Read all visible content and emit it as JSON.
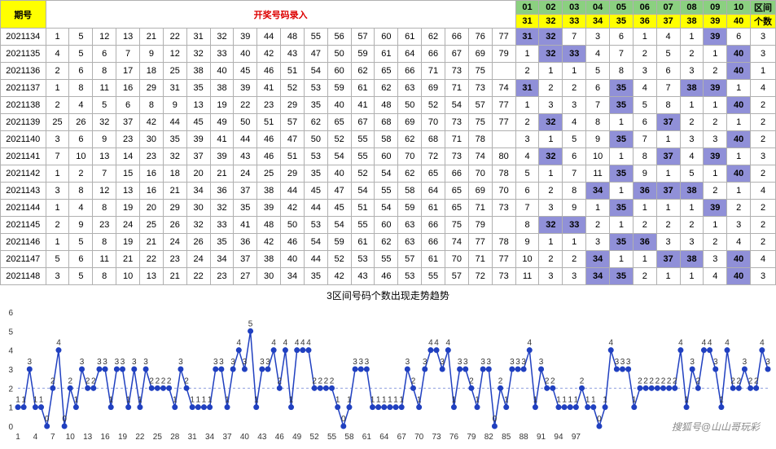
{
  "header": {
    "period_label": "期号",
    "entry_label": "开奖号码录入",
    "segments_top": [
      "01",
      "02",
      "03",
      "04",
      "05",
      "06",
      "07",
      "08",
      "09",
      "10"
    ],
    "segments_bottom": [
      "31",
      "32",
      "33",
      "34",
      "35",
      "36",
      "37",
      "38",
      "39",
      "40"
    ],
    "range_label": "区间",
    "count_label": "个数"
  },
  "colors": {
    "yellow": "#ffff00",
    "green": "#8bd080",
    "highlight": "#9090d8",
    "red": "#d00",
    "border": "#b0b0b0",
    "chart_line": "#2040c0",
    "chart_dashed": "#5080d0"
  },
  "rows": [
    {
      "period": "2021134",
      "nums": [
        "1",
        "5",
        "12",
        "13",
        "21",
        "22",
        "31",
        "32",
        "39",
        "44",
        "48",
        "55",
        "56",
        "57",
        "60",
        "61",
        "62",
        "66",
        "76",
        "77"
      ],
      "seg": [
        {
          "v": "31",
          "h": 1
        },
        {
          "v": "32",
          "h": 1
        },
        {
          "v": "7",
          "h": 0
        },
        {
          "v": "3",
          "h": 0
        },
        {
          "v": "6",
          "h": 0
        },
        {
          "v": "1",
          "h": 0
        },
        {
          "v": "4",
          "h": 0
        },
        {
          "v": "1",
          "h": 0
        },
        {
          "v": "39",
          "h": 1
        },
        {
          "v": "6",
          "h": 0
        }
      ],
      "cnt": "3"
    },
    {
      "period": "2021135",
      "nums": [
        "4",
        "5",
        "6",
        "7",
        "9",
        "12",
        "32",
        "33",
        "40",
        "42",
        "43",
        "47",
        "50",
        "59",
        "61",
        "64",
        "66",
        "67",
        "69",
        "79"
      ],
      "seg": [
        {
          "v": "1",
          "h": 0
        },
        {
          "v": "32",
          "h": 1
        },
        {
          "v": "33",
          "h": 1
        },
        {
          "v": "4",
          "h": 0
        },
        {
          "v": "7",
          "h": 0
        },
        {
          "v": "2",
          "h": 0
        },
        {
          "v": "5",
          "h": 0
        },
        {
          "v": "2",
          "h": 0
        },
        {
          "v": "1",
          "h": 0
        },
        {
          "v": "40",
          "h": 1
        }
      ],
      "cnt": "3"
    },
    {
      "period": "2021136",
      "nums": [
        "2",
        "6",
        "8",
        "17",
        "18",
        "25",
        "38",
        "40",
        "45",
        "46",
        "51",
        "54",
        "60",
        "62",
        "65",
        "66",
        "71",
        "73",
        "75"
      ],
      "seg": [
        {
          "v": "2",
          "h": 0
        },
        {
          "v": "1",
          "h": 0
        },
        {
          "v": "1",
          "h": 0
        },
        {
          "v": "5",
          "h": 0
        },
        {
          "v": "8",
          "h": 0
        },
        {
          "v": "3",
          "h": 0
        },
        {
          "v": "6",
          "h": 0
        },
        {
          "v": "3",
          "h": 0
        },
        {
          "v": "2",
          "h": 0
        },
        {
          "v": "40",
          "h": 1
        }
      ],
      "cnt": "1"
    },
    {
      "period": "2021137",
      "nums": [
        "1",
        "8",
        "11",
        "16",
        "29",
        "31",
        "35",
        "38",
        "39",
        "41",
        "52",
        "53",
        "59",
        "61",
        "62",
        "63",
        "69",
        "71",
        "73",
        "74"
      ],
      "seg": [
        {
          "v": "31",
          "h": 1
        },
        {
          "v": "2",
          "h": 0
        },
        {
          "v": "2",
          "h": 0
        },
        {
          "v": "6",
          "h": 0
        },
        {
          "v": "35",
          "h": 1
        },
        {
          "v": "4",
          "h": 0
        },
        {
          "v": "7",
          "h": 0
        },
        {
          "v": "38",
          "h": 1
        },
        {
          "v": "39",
          "h": 1
        },
        {
          "v": "1",
          "h": 0
        }
      ],
      "cnt": "4"
    },
    {
      "period": "2021138",
      "nums": [
        "2",
        "4",
        "5",
        "6",
        "8",
        "9",
        "13",
        "19",
        "22",
        "23",
        "29",
        "35",
        "40",
        "41",
        "48",
        "50",
        "52",
        "54",
        "57",
        "77"
      ],
      "seg": [
        {
          "v": "1",
          "h": 0
        },
        {
          "v": "3",
          "h": 0
        },
        {
          "v": "3",
          "h": 0
        },
        {
          "v": "7",
          "h": 0
        },
        {
          "v": "35",
          "h": 1
        },
        {
          "v": "5",
          "h": 0
        },
        {
          "v": "8",
          "h": 0
        },
        {
          "v": "1",
          "h": 0
        },
        {
          "v": "1",
          "h": 0
        },
        {
          "v": "40",
          "h": 1
        }
      ],
      "cnt": "2"
    },
    {
      "period": "2021139",
      "nums": [
        "25",
        "26",
        "32",
        "37",
        "42",
        "44",
        "45",
        "49",
        "50",
        "51",
        "57",
        "62",
        "65",
        "67",
        "68",
        "69",
        "70",
        "73",
        "75",
        "77"
      ],
      "seg": [
        {
          "v": "2",
          "h": 0
        },
        {
          "v": "32",
          "h": 1
        },
        {
          "v": "4",
          "h": 0
        },
        {
          "v": "8",
          "h": 0
        },
        {
          "v": "1",
          "h": 0
        },
        {
          "v": "6",
          "h": 0
        },
        {
          "v": "37",
          "h": 1
        },
        {
          "v": "2",
          "h": 0
        },
        {
          "v": "2",
          "h": 0
        },
        {
          "v": "1",
          "h": 0
        }
      ],
      "cnt": "2"
    },
    {
      "period": "2021140",
      "nums": [
        "3",
        "6",
        "9",
        "23",
        "30",
        "35",
        "39",
        "41",
        "44",
        "46",
        "47",
        "50",
        "52",
        "55",
        "58",
        "62",
        "68",
        "71",
        "78"
      ],
      "seg": [
        {
          "v": "3",
          "h": 0
        },
        {
          "v": "1",
          "h": 0
        },
        {
          "v": "5",
          "h": 0
        },
        {
          "v": "9",
          "h": 0
        },
        {
          "v": "35",
          "h": 1
        },
        {
          "v": "7",
          "h": 0
        },
        {
          "v": "1",
          "h": 0
        },
        {
          "v": "3",
          "h": 0
        },
        {
          "v": "3",
          "h": 0
        },
        {
          "v": "40",
          "h": 1
        }
      ],
      "cnt": "2"
    },
    {
      "period": "2021141",
      "nums": [
        "7",
        "10",
        "13",
        "14",
        "23",
        "32",
        "37",
        "39",
        "43",
        "46",
        "51",
        "53",
        "54",
        "55",
        "60",
        "70",
        "72",
        "73",
        "74",
        "80"
      ],
      "seg": [
        {
          "v": "4",
          "h": 0
        },
        {
          "v": "32",
          "h": 1
        },
        {
          "v": "6",
          "h": 0
        },
        {
          "v": "10",
          "h": 0
        },
        {
          "v": "1",
          "h": 0
        },
        {
          "v": "8",
          "h": 0
        },
        {
          "v": "37",
          "h": 1
        },
        {
          "v": "4",
          "h": 0
        },
        {
          "v": "39",
          "h": 1
        },
        {
          "v": "1",
          "h": 0
        }
      ],
      "cnt": "3"
    },
    {
      "period": "2021142",
      "nums": [
        "1",
        "2",
        "7",
        "15",
        "16",
        "18",
        "20",
        "21",
        "24",
        "25",
        "29",
        "35",
        "40",
        "52",
        "54",
        "62",
        "65",
        "66",
        "70",
        "78"
      ],
      "seg": [
        {
          "v": "5",
          "h": 0
        },
        {
          "v": "1",
          "h": 0
        },
        {
          "v": "7",
          "h": 0
        },
        {
          "v": "11",
          "h": 0
        },
        {
          "v": "35",
          "h": 1
        },
        {
          "v": "9",
          "h": 0
        },
        {
          "v": "1",
          "h": 0
        },
        {
          "v": "5",
          "h": 0
        },
        {
          "v": "1",
          "h": 0
        },
        {
          "v": "40",
          "h": 1
        }
      ],
      "cnt": "2"
    },
    {
      "period": "2021143",
      "nums": [
        "3",
        "8",
        "12",
        "13",
        "16",
        "21",
        "34",
        "36",
        "37",
        "38",
        "44",
        "45",
        "47",
        "54",
        "55",
        "58",
        "64",
        "65",
        "69",
        "70"
      ],
      "seg": [
        {
          "v": "6",
          "h": 0
        },
        {
          "v": "2",
          "h": 0
        },
        {
          "v": "8",
          "h": 0
        },
        {
          "v": "34",
          "h": 1
        },
        {
          "v": "1",
          "h": 0
        },
        {
          "v": "36",
          "h": 1
        },
        {
          "v": "37",
          "h": 1
        },
        {
          "v": "38",
          "h": 1
        },
        {
          "v": "2",
          "h": 0
        },
        {
          "v": "1",
          "h": 0
        }
      ],
      "cnt": "4"
    },
    {
      "period": "2021144",
      "nums": [
        "1",
        "4",
        "8",
        "19",
        "20",
        "29",
        "30",
        "32",
        "35",
        "39",
        "42",
        "44",
        "45",
        "51",
        "54",
        "59",
        "61",
        "65",
        "71",
        "73"
      ],
      "seg": [
        {
          "v": "7",
          "h": 0
        },
        {
          "v": "3",
          "h": 0
        },
        {
          "v": "9",
          "h": 0
        },
        {
          "v": "1",
          "h": 0
        },
        {
          "v": "35",
          "h": 1
        },
        {
          "v": "1",
          "h": 0
        },
        {
          "v": "1",
          "h": 0
        },
        {
          "v": "1",
          "h": 0
        },
        {
          "v": "39",
          "h": 1
        },
        {
          "v": "2",
          "h": 0
        }
      ],
      "cnt": "2"
    },
    {
      "period": "2021145",
      "nums": [
        "2",
        "9",
        "23",
        "24",
        "25",
        "26",
        "32",
        "33",
        "41",
        "48",
        "50",
        "53",
        "54",
        "55",
        "60",
        "63",
        "66",
        "75",
        "79"
      ],
      "seg": [
        {
          "v": "8",
          "h": 0
        },
        {
          "v": "32",
          "h": 1
        },
        {
          "v": "33",
          "h": 1
        },
        {
          "v": "2",
          "h": 0
        },
        {
          "v": "1",
          "h": 0
        },
        {
          "v": "2",
          "h": 0
        },
        {
          "v": "2",
          "h": 0
        },
        {
          "v": "2",
          "h": 0
        },
        {
          "v": "1",
          "h": 0
        },
        {
          "v": "3",
          "h": 0
        }
      ],
      "cnt": "2"
    },
    {
      "period": "2021146",
      "nums": [
        "1",
        "5",
        "8",
        "19",
        "21",
        "24",
        "26",
        "35",
        "36",
        "42",
        "46",
        "54",
        "59",
        "61",
        "62",
        "63",
        "66",
        "74",
        "77",
        "78"
      ],
      "seg": [
        {
          "v": "9",
          "h": 0
        },
        {
          "v": "1",
          "h": 0
        },
        {
          "v": "1",
          "h": 0
        },
        {
          "v": "3",
          "h": 0
        },
        {
          "v": "35",
          "h": 1
        },
        {
          "v": "36",
          "h": 1
        },
        {
          "v": "3",
          "h": 0
        },
        {
          "v": "3",
          "h": 0
        },
        {
          "v": "2",
          "h": 0
        },
        {
          "v": "4",
          "h": 0
        }
      ],
      "cnt": "2"
    },
    {
      "period": "2021147",
      "nums": [
        "5",
        "6",
        "11",
        "21",
        "22",
        "23",
        "24",
        "34",
        "37",
        "38",
        "40",
        "44",
        "52",
        "53",
        "55",
        "57",
        "61",
        "70",
        "71",
        "77"
      ],
      "seg": [
        {
          "v": "10",
          "h": 0
        },
        {
          "v": "2",
          "h": 0
        },
        {
          "v": "2",
          "h": 0
        },
        {
          "v": "34",
          "h": 1
        },
        {
          "v": "1",
          "h": 0
        },
        {
          "v": "1",
          "h": 0
        },
        {
          "v": "37",
          "h": 1
        },
        {
          "v": "38",
          "h": 1
        },
        {
          "v": "3",
          "h": 0
        },
        {
          "v": "40",
          "h": 1
        }
      ],
      "cnt": "4"
    },
    {
      "period": "2021148",
      "nums": [
        "3",
        "5",
        "8",
        "10",
        "13",
        "21",
        "22",
        "23",
        "27",
        "30",
        "34",
        "35",
        "42",
        "43",
        "46",
        "53",
        "55",
        "57",
        "72",
        "73"
      ],
      "seg": [
        {
          "v": "11",
          "h": 0
        },
        {
          "v": "3",
          "h": 0
        },
        {
          "v": "3",
          "h": 0
        },
        {
          "v": "34",
          "h": 1
        },
        {
          "v": "35",
          "h": 1
        },
        {
          "v": "2",
          "h": 0
        },
        {
          "v": "1",
          "h": 0
        },
        {
          "v": "1",
          "h": 0
        },
        {
          "v": "4",
          "h": 0
        },
        {
          "v": "40",
          "h": 1
        }
      ],
      "cnt": "3"
    }
  ],
  "chart": {
    "title": "3区间号码个数出现走势趋势",
    "ylim": [
      0,
      6
    ],
    "yticks": [
      0,
      1,
      2,
      3,
      4,
      5,
      6
    ],
    "xticks": [
      "1",
      "4",
      "7",
      "10",
      "13",
      "16",
      "19",
      "22",
      "25",
      "28",
      "31",
      "34",
      "37",
      "40",
      "43",
      "46",
      "49",
      "52",
      "55",
      "58",
      "61",
      "64",
      "67",
      "70",
      "73",
      "76",
      "79",
      "82",
      "85",
      "88",
      "91",
      "94",
      "97"
    ],
    "baseline": 2,
    "series": [
      1,
      1,
      3,
      1,
      1,
      0,
      2,
      4,
      0,
      2,
      1,
      3,
      2,
      2,
      3,
      3,
      1,
      3,
      3,
      1,
      3,
      1,
      3,
      2,
      2,
      2,
      2,
      1,
      3,
      2,
      1,
      1,
      1,
      1,
      3,
      3,
      1,
      3,
      4,
      3,
      5,
      1,
      3,
      3,
      4,
      2,
      4,
      1,
      4,
      4,
      4,
      2,
      2,
      2,
      2,
      1,
      0,
      1,
      3,
      3,
      3,
      1,
      1,
      1,
      1,
      1,
      1,
      3,
      2,
      1,
      3,
      4,
      4,
      3,
      4,
      1,
      3,
      3,
      2,
      1,
      3,
      3,
      0,
      2,
      1,
      3,
      3,
      3,
      4,
      1,
      3,
      2,
      2,
      1,
      1,
      1,
      1,
      2,
      1,
      1,
      0,
      1,
      4,
      3,
      3,
      3,
      1,
      2,
      2,
      2,
      2,
      2,
      2,
      2,
      4,
      1,
      3,
      2,
      4,
      4,
      3,
      1,
      4,
      2,
      2,
      3,
      2,
      2,
      4,
      3
    ],
    "line_color": "#2040c0",
    "marker_size": 3.5,
    "label_fontsize": 10,
    "axis_fontsize": 10
  },
  "watermark": "搜狐号@山山哥玩彩"
}
